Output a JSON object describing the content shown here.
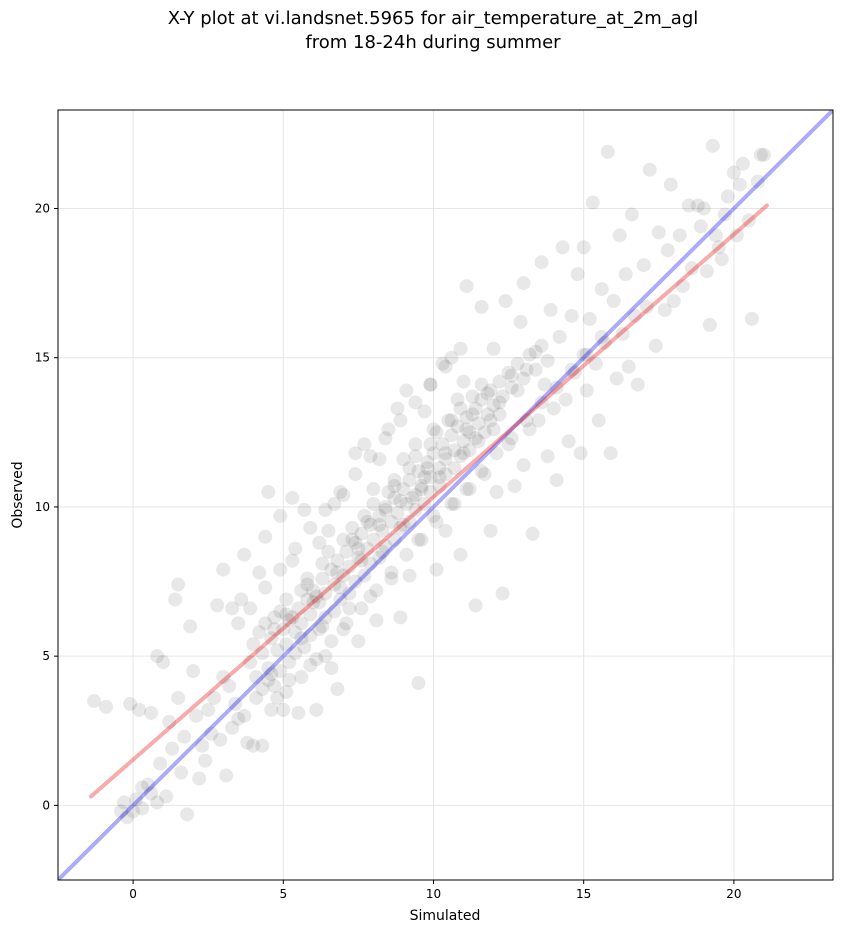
{
  "chart_data": {
    "type": "scatter",
    "title_line1": "X-Y plot at vi.landsnet.5965 for air_temperature_at_2m_agl",
    "title_line2": "from 18-24h during summer",
    "xlabel": "Simulated",
    "ylabel": "Observed",
    "xlim": [
      -2.5,
      23.3
    ],
    "ylim": [
      -2.5,
      23.3
    ],
    "xticks": [
      "0",
      "5",
      "10",
      "15",
      "20"
    ],
    "yticks": [
      "0",
      "5",
      "10",
      "15",
      "20"
    ],
    "grid": true,
    "point_color": "#000000",
    "point_opacity": 0.09,
    "identity_line": {
      "color": "#0000ee",
      "x": [
        -2.5,
        23.3
      ],
      "y": [
        -2.5,
        23.3
      ]
    },
    "fit_line": {
      "color": "#ee0000",
      "x": [
        -1.4,
        21.1
      ],
      "y": [
        0.3,
        20.1
      ]
    },
    "points": [
      [
        -1.3,
        3.5
      ],
      [
        -0.9,
        3.3
      ],
      [
        -0.3,
        0.1
      ],
      [
        0,
        -0.2
      ],
      [
        -0.1,
        3.4
      ],
      [
        0.2,
        3.2
      ],
      [
        0.3,
        0.6
      ],
      [
        0.5,
        0.7
      ],
      [
        0.6,
        3.1
      ],
      [
        0.8,
        5.0
      ],
      [
        1,
        4.8
      ],
      [
        1.2,
        2.8
      ],
      [
        1.1,
        0.3
      ],
      [
        1.5,
        3.6
      ],
      [
        1.4,
        6.9
      ],
      [
        1.5,
        7.4
      ],
      [
        1.9,
        6.0
      ],
      [
        1.8,
        -0.3
      ],
      [
        2,
        4.5
      ],
      [
        2.2,
        0.9
      ],
      [
        2.3,
        2.0
      ],
      [
        2.5,
        3.2
      ],
      [
        2.7,
        3.6
      ],
      [
        2.8,
        6.7
      ],
      [
        3,
        4.3
      ],
      [
        3,
        7.9
      ],
      [
        3.1,
        1.0
      ],
      [
        3.3,
        6.6
      ],
      [
        3.5,
        2.9
      ],
      [
        3.6,
        6.9
      ],
      [
        3.7,
        8.4
      ],
      [
        3.8,
        2.1
      ],
      [
        4,
        5.4
      ],
      [
        4,
        2.0
      ],
      [
        4.2,
        7.8
      ],
      [
        4.3,
        2.0
      ],
      [
        4.4,
        9.0
      ],
      [
        4.5,
        10.5
      ],
      [
        4.6,
        4.4
      ],
      [
        4.7,
        6.3
      ],
      [
        4.8,
        3.6
      ],
      [
        4.9,
        9.7
      ],
      [
        5,
        3.2
      ],
      [
        5.1,
        6.4
      ],
      [
        5.2,
        4.2
      ],
      [
        5.3,
        10.3
      ],
      [
        5.3,
        8.2
      ],
      [
        5.5,
        3.1
      ],
      [
        5.6,
        5.6
      ],
      [
        5.7,
        9.9
      ],
      [
        5.8,
        7.4
      ],
      [
        5.9,
        4.7
      ],
      [
        6,
        6.8
      ],
      [
        6.1,
        3.2
      ],
      [
        6.2,
        8.8
      ],
      [
        6.3,
        6.0
      ],
      [
        6.4,
        5.0
      ],
      [
        6.5,
        9.2
      ],
      [
        6.6,
        4.6
      ],
      [
        6.7,
        10.1
      ],
      [
        6.8,
        3.9
      ],
      [
        6.9,
        7.3
      ],
      [
        7,
        5.9
      ],
      [
        7,
        10.4
      ],
      [
        7.2,
        6.6
      ],
      [
        7.3,
        8.9
      ],
      [
        7.4,
        11.8
      ],
      [
        7.5,
        5.5
      ],
      [
        7.6,
        8.2
      ],
      [
        7.7,
        12.1
      ],
      [
        7.8,
        9.5
      ],
      [
        7.9,
        7.0
      ],
      [
        8,
        10.6
      ],
      [
        8.1,
        6.2
      ],
      [
        8.2,
        11.6
      ],
      [
        8.3,
        8.5
      ],
      [
        8.4,
        9.9
      ],
      [
        8.5,
        12.6
      ],
      [
        8.6,
        7.6
      ],
      [
        8.7,
        10.7
      ],
      [
        8.8,
        13.3
      ],
      [
        8.9,
        6.3
      ],
      [
        9,
        9.4
      ],
      [
        9,
        11.6
      ],
      [
        9.1,
        13.9
      ],
      [
        9.2,
        7.7
      ],
      [
        9.3,
        10.3
      ],
      [
        9.4,
        12.1
      ],
      [
        9.5,
        4.1
      ],
      [
        9.5,
        8.9
      ],
      [
        9.6,
        10.6
      ],
      [
        9.7,
        13.2
      ],
      [
        9.8,
        11.3
      ],
      [
        9.9,
        14.1
      ],
      [
        10,
        9.7
      ],
      [
        10,
        12.6
      ],
      [
        10.1,
        7.9
      ],
      [
        10.2,
        11.0
      ],
      [
        10.3,
        14.8
      ],
      [
        10.4,
        9.2
      ],
      [
        10.5,
        12.9
      ],
      [
        10.6,
        15.0
      ],
      [
        10.7,
        10.1
      ],
      [
        10.8,
        13.6
      ],
      [
        10.9,
        8.4
      ],
      [
        11,
        11.8
      ],
      [
        11,
        14.2
      ],
      [
        11.1,
        17.4
      ],
      [
        11.2,
        10.6
      ],
      [
        11.3,
        13.1
      ],
      [
        11.4,
        6.7
      ],
      [
        11.5,
        12.2
      ],
      [
        11.6,
        16.7
      ],
      [
        11.7,
        11.1
      ],
      [
        11.8,
        13.8
      ],
      [
        11.9,
        9.2
      ],
      [
        12,
        12.6
      ],
      [
        12,
        15.3
      ],
      [
        12.1,
        10.5
      ],
      [
        12.2,
        13.5
      ],
      [
        12.3,
        7.1
      ],
      [
        12.4,
        16.9
      ],
      [
        12.5,
        12.1
      ],
      [
        12.6,
        14.4
      ],
      [
        12.7,
        10.7
      ],
      [
        12.8,
        13.9
      ],
      [
        12.9,
        16.2
      ],
      [
        13,
        11.4
      ],
      [
        13,
        17.5
      ],
      [
        13.1,
        14.6
      ],
      [
        13.2,
        12.6
      ],
      [
        13.3,
        9.1
      ],
      [
        13.4,
        15.2
      ],
      [
        13.5,
        12.9
      ],
      [
        13.6,
        18.2
      ],
      [
        13.7,
        14.1
      ],
      [
        13.8,
        11.7
      ],
      [
        13.9,
        16.6
      ],
      [
        14,
        13.3
      ],
      [
        14.1,
        10.9
      ],
      [
        14.2,
        15.7
      ],
      [
        14.3,
        18.7
      ],
      [
        14.4,
        13.6
      ],
      [
        14.5,
        12.2
      ],
      [
        14.6,
        16.4
      ],
      [
        14.7,
        14.5
      ],
      [
        14.8,
        17.8
      ],
      [
        14.9,
        11.8
      ],
      [
        15,
        15.1
      ],
      [
        15,
        18.7
      ],
      [
        15.1,
        13.9
      ],
      [
        15.2,
        16.3
      ],
      [
        15.3,
        20.2
      ],
      [
        15.4,
        14.8
      ],
      [
        15.5,
        12.9
      ],
      [
        15.6,
        17.3
      ],
      [
        15.7,
        15.5
      ],
      [
        15.8,
        21.9
      ],
      [
        15.9,
        11.8
      ],
      [
        16,
        16.9
      ],
      [
        16.1,
        14.3
      ],
      [
        16.2,
        19.1
      ],
      [
        16.3,
        15.8
      ],
      [
        16.4,
        17.8
      ],
      [
        16.5,
        14.7
      ],
      [
        16.6,
        19.8
      ],
      [
        16.7,
        16.4
      ],
      [
        16.8,
        14.1
      ],
      [
        17,
        18.1
      ],
      [
        17.1,
        16.7
      ],
      [
        17.2,
        21.3
      ],
      [
        17.4,
        15.4
      ],
      [
        17.5,
        19.2
      ],
      [
        17.7,
        16.6
      ],
      [
        17.8,
        18.6
      ],
      [
        17.9,
        20.8
      ],
      [
        18,
        16.9
      ],
      [
        18.2,
        19.1
      ],
      [
        18.3,
        17.4
      ],
      [
        18.5,
        20.1
      ],
      [
        18.6,
        18.0
      ],
      [
        18.8,
        20.1
      ],
      [
        18.9,
        19.4
      ],
      [
        19,
        20.0
      ],
      [
        19.1,
        17.9
      ],
      [
        19.2,
        16.1
      ],
      [
        19.3,
        22.1
      ],
      [
        19.4,
        19.1
      ],
      [
        19.5,
        18.7
      ],
      [
        19.6,
        18.3
      ],
      [
        19.7,
        19.8
      ],
      [
        19.8,
        20.4
      ],
      [
        20,
        21.2
      ],
      [
        20.1,
        19.1
      ],
      [
        20.2,
        20.8
      ],
      [
        20.3,
        21.5
      ],
      [
        20.5,
        19.6
      ],
      [
        20.6,
        16.3
      ],
      [
        20.8,
        20.9
      ],
      [
        20.9,
        21.8
      ],
      [
        21,
        21.8
      ],
      [
        0.9,
        1.4
      ],
      [
        1.7,
        2.3
      ],
      [
        2.1,
        3.0
      ],
      [
        2.6,
        2.4
      ],
      [
        3.2,
        4.0
      ],
      [
        3.4,
        3.4
      ],
      [
        3.9,
        4.8
      ],
      [
        4.1,
        4.3
      ],
      [
        4.3,
        5.1
      ],
      [
        4.5,
        4.6
      ],
      [
        4.6,
        5.6
      ],
      [
        4.8,
        5.2
      ],
      [
        5,
        5.9
      ],
      [
        5.1,
        5.4
      ],
      [
        5.2,
        6.2
      ],
      [
        5.4,
        5.8
      ],
      [
        5.5,
        6.6
      ],
      [
        5.6,
        6.1
      ],
      [
        5.8,
        6.9
      ],
      [
        5.9,
        6.4
      ],
      [
        6,
        7.2
      ],
      [
        6.2,
        6.8
      ],
      [
        6.3,
        7.6
      ],
      [
        6.4,
        7.1
      ],
      [
        6.6,
        7.9
      ],
      [
        6.7,
        7.4
      ],
      [
        6.8,
        8.2
      ],
      [
        7,
        7.7
      ],
      [
        7.1,
        8.5
      ],
      [
        7.2,
        8.0
      ],
      [
        7.4,
        8.8
      ],
      [
        7.5,
        8.3
      ],
      [
        7.6,
        9.1
      ],
      [
        7.8,
        8.6
      ],
      [
        7.9,
        9.4
      ],
      [
        8,
        8.9
      ],
      [
        8.2,
        9.7
      ],
      [
        8.3,
        9.2
      ],
      [
        8.4,
        10.0
      ],
      [
        8.6,
        9.5
      ],
      [
        8.7,
        10.3
      ],
      [
        8.8,
        9.8
      ],
      [
        9,
        10.6
      ],
      [
        9.1,
        10.1
      ],
      [
        9.2,
        10.9
      ],
      [
        9.4,
        10.4
      ],
      [
        9.5,
        11.2
      ],
      [
        9.6,
        10.7
      ],
      [
        9.8,
        11.5
      ],
      [
        9.9,
        11.0
      ],
      [
        10,
        11.8
      ],
      [
        10.2,
        11.3
      ],
      [
        10.3,
        12.1
      ],
      [
        10.4,
        11.6
      ],
      [
        10.6,
        12.4
      ],
      [
        10.7,
        11.9
      ],
      [
        10.8,
        12.7
      ],
      [
        11,
        12.2
      ],
      [
        11.1,
        13.0
      ],
      [
        11.2,
        12.5
      ],
      [
        11.4,
        13.3
      ],
      [
        11.5,
        12.8
      ],
      [
        11.6,
        13.6
      ],
      [
        11.8,
        13.1
      ],
      [
        11.9,
        13.9
      ],
      [
        12,
        13.4
      ],
      [
        12.2,
        14.2
      ],
      [
        12.3,
        13.7
      ],
      [
        12.5,
        14.5
      ],
      [
        12.6,
        14.0
      ],
      [
        12.8,
        14.8
      ],
      [
        13,
        14.3
      ],
      [
        13.2,
        15.1
      ],
      [
        13.4,
        14.6
      ],
      [
        13.6,
        15.4
      ],
      [
        13.8,
        14.9
      ],
      [
        4.2,
        5.8
      ],
      [
        4.4,
        6.1
      ],
      [
        4.7,
        5.9
      ],
      [
        4.9,
        6.5
      ],
      [
        5.1,
        6.9
      ],
      [
        5.3,
        6.3
      ],
      [
        5.6,
        7.2
      ],
      [
        5.8,
        7.6
      ],
      [
        6.1,
        7.0
      ],
      [
        6.3,
        8.1
      ],
      [
        6.5,
        8.5
      ],
      [
        6.8,
        7.8
      ],
      [
        7,
        8.9
      ],
      [
        7.3,
        9.3
      ],
      [
        7.5,
        8.6
      ],
      [
        7.7,
        9.7
      ],
      [
        8,
        10.1
      ],
      [
        8.2,
        9.4
      ],
      [
        8.5,
        10.5
      ],
      [
        8.7,
        10.9
      ],
      [
        8.9,
        10.2
      ],
      [
        9.2,
        11.3
      ],
      [
        9.4,
        11.7
      ],
      [
        9.7,
        11.0
      ],
      [
        9.9,
        12.1
      ],
      [
        10.1,
        12.5
      ],
      [
        10.4,
        11.8
      ],
      [
        10.6,
        12.9
      ],
      [
        10.9,
        13.3
      ],
      [
        11.1,
        12.6
      ],
      [
        11.3,
        13.7
      ],
      [
        11.6,
        14.1
      ],
      [
        3.5,
        6.1
      ],
      [
        3.9,
        6.6
      ],
      [
        4.4,
        7.3
      ],
      [
        4.9,
        7.9
      ],
      [
        5.4,
        8.6
      ],
      [
        5.9,
        9.3
      ],
      [
        6.4,
        9.9
      ],
      [
        6.9,
        10.5
      ],
      [
        7.4,
        11.1
      ],
      [
        7.9,
        11.7
      ],
      [
        8.4,
        12.3
      ],
      [
        8.9,
        12.9
      ],
      [
        9.4,
        13.5
      ],
      [
        9.9,
        14.1
      ],
      [
        10.4,
        14.7
      ],
      [
        10.9,
        15.3
      ],
      [
        4.6,
        3.2
      ],
      [
        5.1,
        3.8
      ],
      [
        5.6,
        4.3
      ],
      [
        6.1,
        4.9
      ],
      [
        6.6,
        5.5
      ],
      [
        7.1,
        6.1
      ],
      [
        7.6,
        6.6
      ],
      [
        8.1,
        7.2
      ],
      [
        8.6,
        7.8
      ],
      [
        9.1,
        8.4
      ],
      [
        9.6,
        8.9
      ],
      [
        10.1,
        9.5
      ],
      [
        10.6,
        10.1
      ],
      [
        11.1,
        10.6
      ],
      [
        11.6,
        11.2
      ],
      [
        12.1,
        11.8
      ],
      [
        12.6,
        12.3
      ],
      [
        13.1,
        12.9
      ],
      [
        13.6,
        13.5
      ],
      [
        14.1,
        14.0
      ],
      [
        14.6,
        14.6
      ],
      [
        15.1,
        15.1
      ],
      [
        15.6,
        15.7
      ],
      [
        0.1,
        0.2
      ],
      [
        0.3,
        -0.1
      ],
      [
        0.6,
        0.4
      ],
      [
        -0.2,
        -0.4
      ],
      [
        -0.4,
        -0.2
      ],
      [
        0.8,
        0.1
      ],
      [
        1.3,
        1.9
      ],
      [
        1.6,
        1.1
      ],
      [
        2.4,
        1.5
      ],
      [
        2.9,
        2.2
      ],
      [
        3.3,
        2.6
      ],
      [
        3.7,
        3.0
      ],
      [
        4.1,
        3.6
      ],
      [
        4.3,
        3.9
      ],
      [
        4.5,
        4.2
      ],
      [
        4.7,
        4.0
      ],
      [
        4.9,
        4.5
      ],
      [
        5.2,
        4.8
      ],
      [
        5.4,
        5.1
      ],
      [
        5.7,
        5.3
      ],
      [
        5.9,
        5.7
      ],
      [
        6.2,
        5.9
      ],
      [
        6.4,
        6.3
      ],
      [
        6.7,
        6.5
      ],
      [
        6.9,
        6.9
      ],
      [
        7.2,
        7.1
      ],
      [
        7.4,
        7.5
      ],
      [
        7.7,
        7.7
      ],
      [
        7.9,
        8.1
      ],
      [
        8.2,
        8.3
      ],
      [
        8.4,
        8.7
      ],
      [
        8.7,
        8.9
      ],
      [
        8.9,
        9.3
      ],
      [
        9.2,
        9.5
      ],
      [
        9.4,
        9.9
      ],
      [
        9.7,
        10.1
      ],
      [
        9.9,
        10.5
      ],
      [
        10.2,
        10.7
      ],
      [
        10.4,
        11.1
      ],
      [
        10.7,
        11.3
      ],
      [
        10.9,
        11.7
      ],
      [
        11.2,
        11.9
      ],
      [
        11.4,
        12.3
      ],
      [
        11.7,
        12.5
      ],
      [
        11.9,
        12.9
      ],
      [
        12.2,
        13.1
      ]
    ]
  }
}
